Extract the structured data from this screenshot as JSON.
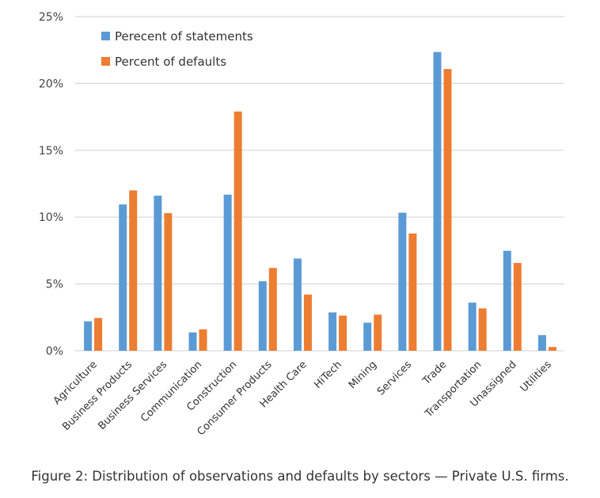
{
  "chart_data": {
    "type": "bar",
    "title": "",
    "xlabel": "",
    "ylabel": "",
    "ylim": [
      0,
      25
    ],
    "yticks": [
      "0%",
      "5%",
      "10%",
      "15%",
      "20%",
      "25%"
    ],
    "grid": true,
    "legend_position": "top-left",
    "categories": [
      "Agriculture",
      "Business Products",
      "Business Services",
      "Communication",
      "Construction",
      "Consumer Products",
      "Health Care",
      "HiTech",
      "Mining",
      "Services",
      "Trade",
      "Transportation",
      "Unassigned",
      "Utilities"
    ],
    "series": [
      {
        "name": "Perecent of statements",
        "color": "#5b9bd5",
        "values": [
          2.2,
          10.95,
          11.6,
          1.37,
          11.68,
          5.2,
          6.9,
          2.87,
          2.1,
          10.33,
          22.35,
          3.6,
          7.48,
          1.17
        ]
      },
      {
        "name": "Percent of defaults",
        "color": "#ed7d31",
        "values": [
          2.45,
          12.0,
          10.3,
          1.6,
          17.9,
          6.2,
          4.2,
          2.63,
          2.7,
          8.77,
          21.08,
          3.17,
          6.57,
          0.28
        ]
      }
    ]
  },
  "caption": "Figure 2: Distribution of observations and defaults by sectors — Private U.S. firms."
}
